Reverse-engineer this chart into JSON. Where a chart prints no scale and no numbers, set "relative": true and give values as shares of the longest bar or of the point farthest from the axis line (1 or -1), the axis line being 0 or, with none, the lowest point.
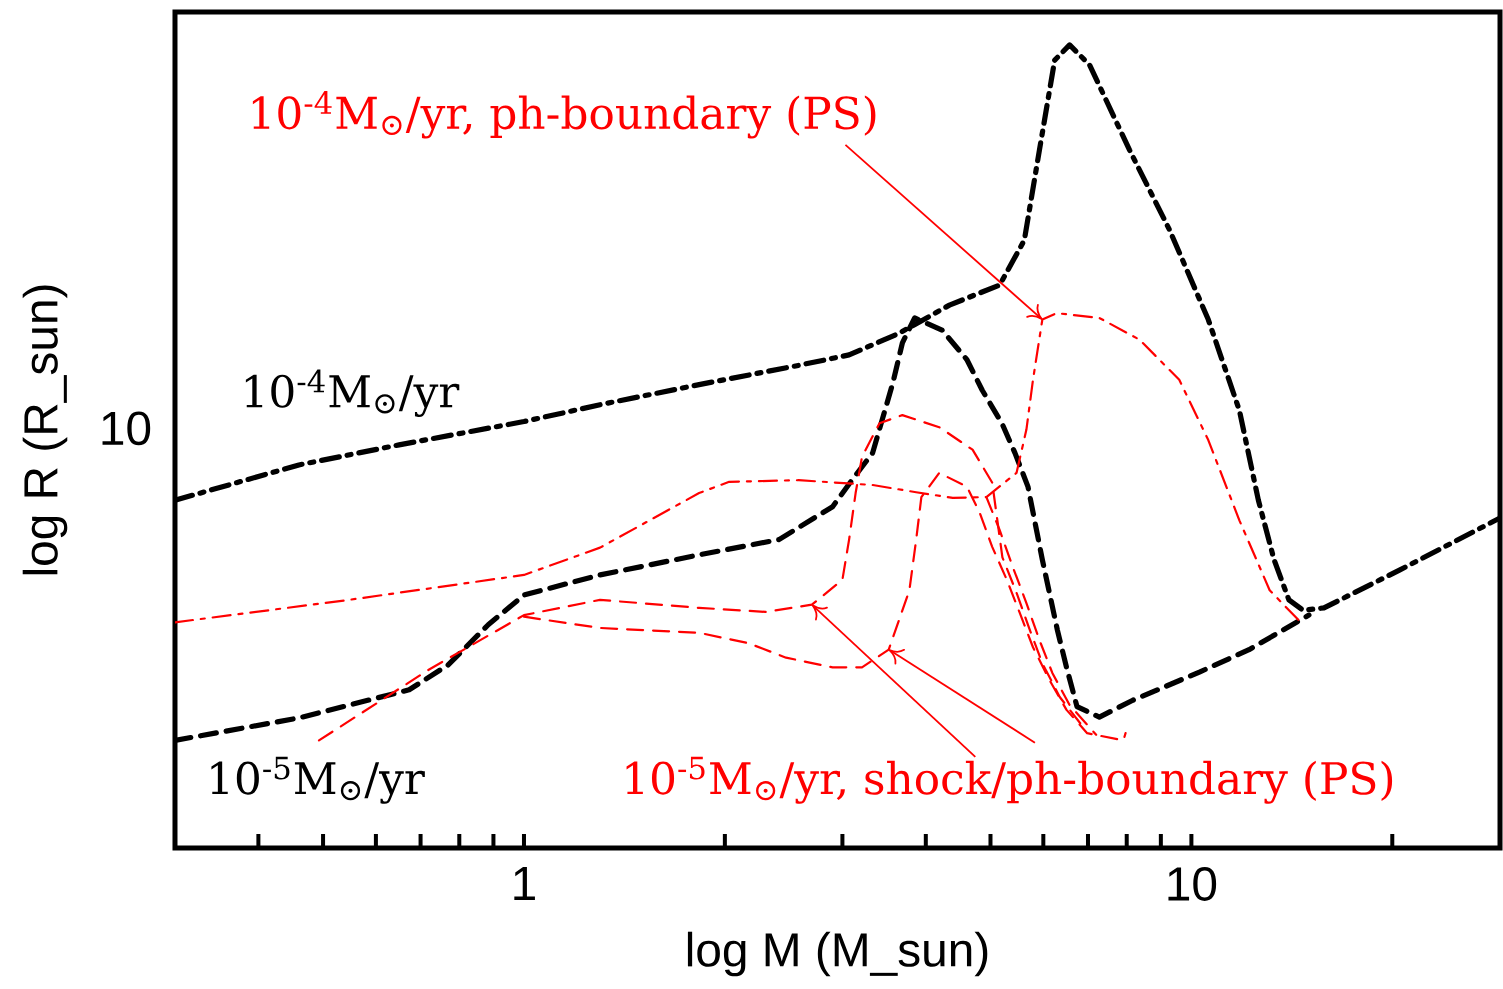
{
  "chart_data": {
    "type": "line",
    "xlabel": "log M (M_sun)",
    "ylabel": "log R (R_sun)",
    "log": "x",
    "relative": true,
    "xlim": [
      0.3,
      29
    ],
    "xticks": [
      {
        "value": 0.4,
        "label": null
      },
      {
        "value": 0.5,
        "label": null
      },
      {
        "value": 0.6,
        "label": null
      },
      {
        "value": 0.7,
        "label": null
      },
      {
        "value": 0.8,
        "label": null
      },
      {
        "value": 0.9,
        "label": null
      },
      1,
      {
        "value": 2,
        "label": null
      },
      {
        "value": 3,
        "label": null
      },
      {
        "value": 4,
        "label": null
      },
      {
        "value": 5,
        "label": null
      },
      {
        "value": 6,
        "label": null
      },
      {
        "value": 7,
        "label": null
      },
      {
        "value": 8,
        "label": null
      },
      {
        "value": 9,
        "label": null
      },
      10,
      {
        "value": 20,
        "label": null
      }
    ],
    "series": [
      {
        "name": "10$^{-4}$M$_{⊙}$/yr",
        "color": "#000000",
        "line_style": "dashdot",
        "x": [
          0.3,
          0.46,
          0.65,
          1.0,
          1.3,
          1.83,
          2.58,
          3.07,
          3.65,
          4.34,
          5.16,
          5.62,
          5.92,
          6.24,
          6.57,
          7.04,
          8.08,
          9.27,
          10.6,
          11.8,
          12.6,
          13.3,
          14.0,
          14.7,
          15.8,
          20.5,
          29
        ],
        "values": [
          0.433,
          0.477,
          0.502,
          0.531,
          0.552,
          0.577,
          0.601,
          0.614,
          0.641,
          0.676,
          0.701,
          0.757,
          0.869,
          0.981,
          1.0,
          0.975,
          0.869,
          0.77,
          0.658,
          0.545,
          0.433,
          0.359,
          0.309,
          0.296,
          0.299,
          0.346,
          0.411
        ]
      },
      {
        "name": "10$^{-5}$M$_{⊙}$/yr",
        "color": "#000000",
        "line_style": "dashed",
        "x": [
          0.3,
          0.46,
          0.673,
          0.77,
          0.884,
          1.0,
          1.3,
          1.83,
          2.41,
          2.9,
          3.1,
          3.33,
          3.57,
          3.69,
          3.85,
          4.23,
          4.61,
          4.86,
          5.2,
          5.44,
          5.69,
          5.98,
          6.3,
          6.5,
          6.74,
          7.28,
          8.17,
          10.28,
          12.2,
          15.0
        ],
        "values": [
          0.134,
          0.162,
          0.197,
          0.228,
          0.278,
          0.315,
          0.34,
          0.365,
          0.384,
          0.425,
          0.458,
          0.492,
          0.579,
          0.629,
          0.66,
          0.645,
          0.608,
          0.57,
          0.529,
          0.492,
          0.45,
          0.359,
          0.271,
          0.225,
          0.176,
          0.163,
          0.184,
          0.219,
          0.247,
          0.29
        ]
      },
      {
        "color": "#ff0000",
        "line_style": "dashdot",
        "x": [
          0.3,
          0.547,
          1.0,
          1.3,
          1.83,
          2.03,
          2.58,
          3.33,
          3.87,
          4.39,
          4.93,
          5.47,
          5.66,
          5.79,
          5.98,
          6.28,
          7.28,
          8.36,
          9.59,
          10.6,
          11.8,
          13.1,
          14.7
        ],
        "values": [
          0.281,
          0.309,
          0.34,
          0.374,
          0.442,
          0.456,
          0.458,
          0.452,
          0.443,
          0.436,
          0.437,
          0.467,
          0.521,
          0.583,
          0.658,
          0.666,
          0.66,
          0.633,
          0.583,
          0.508,
          0.408,
          0.321,
          0.278
        ]
      },
      {
        "color": "#ff0000",
        "line_style": "dashed",
        "x": [
          0.493,
          0.72,
          1.0,
          1.3,
          1.83,
          2.3,
          2.7,
          3.0,
          3.07,
          3.14,
          3.21,
          3.41,
          3.69,
          4.19,
          4.7,
          5.03,
          5.21,
          5.47,
          5.73,
          5.98,
          6.35,
          6.88
        ],
        "values": [
          0.134,
          0.222,
          0.29,
          0.309,
          0.299,
          0.294,
          0.303,
          0.334,
          0.384,
          0.442,
          0.487,
          0.529,
          0.539,
          0.524,
          0.496,
          0.455,
          0.362,
          0.318,
          0.271,
          0.23,
          0.188,
          0.151
        ]
      },
      {
        "color": "#ff0000",
        "line_style": "dashed",
        "x": [
          1.0,
          1.3,
          1.83,
          2.17,
          2.47,
          2.9,
          3.21,
          3.52,
          3.78,
          3.87,
          3.94,
          4.19,
          4.61,
          4.82,
          5.03,
          5.29,
          5.53,
          5.79,
          6.13,
          6.5,
          6.98,
          7.91,
          7.97
        ],
        "values": [
          0.288,
          0.274,
          0.268,
          0.255,
          0.237,
          0.225,
          0.225,
          0.247,
          0.321,
          0.384,
          0.437,
          0.467,
          0.45,
          0.417,
          0.375,
          0.334,
          0.293,
          0.25,
          0.209,
          0.172,
          0.143,
          0.134,
          0.143
        ]
      },
      {
        "color": "#ff0000",
        "line_style": "dashed",
        "x": [
          4.93,
          5.16,
          5.4,
          5.66,
          5.92,
          6.19,
          6.57,
          7.2
        ],
        "values": [
          0.437,
          0.396,
          0.35,
          0.305,
          0.259,
          0.218,
          0.178,
          0.141
        ]
      }
    ],
    "annotations": [
      {
        "text": "10$^{-4}$M$_{⊙}$/yr, ph-boundary (PS)",
        "x": 5.98,
        "y": 0.658
      },
      {
        "text": "10$^{-5}$M$_{⊙}$/yr, shock/ph-boundary (PS)",
        "x": 2.7,
        "y": 0.303
      },
      "10"
    ]
  }
}
